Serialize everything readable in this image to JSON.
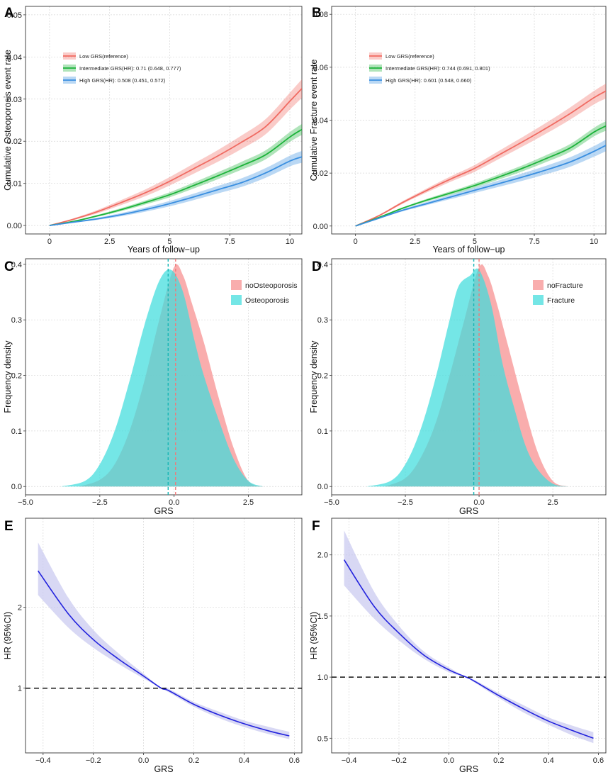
{
  "colors": {
    "low": "#f06b62",
    "intermediate": "#1cb33a",
    "high": "#3a8fe0",
    "noevent": "#f8a4a4",
    "event": "#3fdcdc",
    "hrline": "#2222dd",
    "hrband": "#c7c7f0"
  },
  "chart_data": [
    {
      "panel": "A",
      "type": "line",
      "title": "",
      "xlabel": "Years of follow−up",
      "ylabel": "Cumulative Osteoporosis event rate",
      "xlim": [
        -1,
        10.5
      ],
      "ylim": [
        -0.002,
        0.052
      ],
      "xticks": [
        0,
        2.5,
        5,
        7.5,
        10
      ],
      "xticklabels": [
        "0",
        "2.5",
        "5",
        "7.5",
        "10"
      ],
      "yticks": [
        0,
        0.01,
        0.02,
        0.03,
        0.04,
        0.05
      ],
      "yticklabels": [
        "0.00",
        "0.01",
        "0.02",
        "0.03",
        "0.04",
        "0.05"
      ],
      "legend": [
        "Low GRS(reference)",
        "Intermediate GRS(HR): 0.71 (0.648, 0.777)",
        "High GRS(HR): 0.508 (0.451, 0.572)"
      ],
      "x": [
        0,
        1,
        2,
        3,
        4,
        5,
        6,
        7,
        8,
        9,
        10,
        10.5
      ],
      "series": [
        {
          "name": "Low GRS(reference)",
          "values": [
            0,
            0.0015,
            0.0033,
            0.0055,
            0.0078,
            0.0105,
            0.0135,
            0.0165,
            0.0198,
            0.0235,
            0.0295,
            0.0325
          ],
          "band": 0.0022
        },
        {
          "name": "Intermediate GRS",
          "values": [
            0,
            0.001,
            0.0023,
            0.0038,
            0.0055,
            0.0073,
            0.0095,
            0.0118,
            0.0142,
            0.0168,
            0.021,
            0.0228
          ],
          "band": 0.0013
        },
        {
          "name": "High GRS",
          "values": [
            0,
            0.0008,
            0.0016,
            0.0026,
            0.0038,
            0.0052,
            0.0068,
            0.0085,
            0.0102,
            0.0125,
            0.0153,
            0.0163
          ],
          "band": 0.0014
        }
      ]
    },
    {
      "panel": "B",
      "type": "line",
      "title": "",
      "xlabel": "Years of follow−up",
      "ylabel": "Cumulative Fracture event rate",
      "xlim": [
        -1,
        10.5
      ],
      "ylim": [
        -0.003,
        0.083
      ],
      "xticks": [
        0,
        2.5,
        5,
        7.5,
        10
      ],
      "xticklabels": [
        "0",
        "2.5",
        "5",
        "7.5",
        "10"
      ],
      "yticks": [
        0,
        0.02,
        0.04,
        0.06,
        0.08
      ],
      "yticklabels": [
        "0.00",
        "0.02",
        "0.04",
        "0.06",
        "0.08"
      ],
      "legend": [
        "Low GRS(reference)",
        "Intermediate GRS(HR): 0.744 (0.691, 0.801)",
        "High GRS(HR): 0.601 (0.548, 0.660)"
      ],
      "x": [
        0,
        1,
        2,
        3,
        4,
        5,
        6,
        7,
        8,
        9,
        10,
        10.5
      ],
      "series": [
        {
          "name": "Low GRS(reference)",
          "values": [
            0,
            0.004,
            0.009,
            0.0135,
            0.0178,
            0.0218,
            0.0268,
            0.0318,
            0.037,
            0.0425,
            0.0485,
            0.051
          ],
          "band": 0.0028
        },
        {
          "name": "Intermediate GRS",
          "values": [
            0,
            0.0033,
            0.0068,
            0.0098,
            0.0125,
            0.0153,
            0.0185,
            0.0218,
            0.0255,
            0.0295,
            0.0355,
            0.0378
          ],
          "band": 0.0018
        },
        {
          "name": "High GRS",
          "values": [
            0,
            0.003,
            0.006,
            0.0085,
            0.011,
            0.0135,
            0.016,
            0.0185,
            0.0212,
            0.0242,
            0.0282,
            0.0305
          ],
          "band": 0.0022
        }
      ]
    },
    {
      "panel": "C",
      "type": "area",
      "title": "",
      "xlabel": "GRS",
      "ylabel": "Frequency density",
      "xlim": [
        -5,
        4.3
      ],
      "ylim": [
        -0.015,
        0.41
      ],
      "xticks": [
        -5,
        -2.5,
        0,
        2.5
      ],
      "xticklabels": [
        "−5.0",
        "−2.5",
        "0.0",
        "2.5"
      ],
      "yticks": [
        0,
        0.1,
        0.2,
        0.3,
        0.4
      ],
      "yticklabels": [
        "0.0",
        "0.1",
        "0.2",
        "0.3",
        "0.4"
      ],
      "legend": [
        "noOsteoporosis",
        "Osteoporosis"
      ],
      "series": [
        {
          "name": "noOsteoporosis",
          "x": [
            -3.2,
            -2.5,
            -2.0,
            -1.5,
            -1.0,
            -0.5,
            0.0,
            0.3,
            0.6,
            1.0,
            1.5,
            2.0,
            2.5,
            3.0
          ],
          "values": [
            0.0,
            0.012,
            0.04,
            0.1,
            0.19,
            0.3,
            0.395,
            0.38,
            0.33,
            0.26,
            0.16,
            0.07,
            0.01,
            0.0
          ],
          "mean": 0.05
        },
        {
          "name": "Osteoporosis",
          "x": [
            -3.8,
            -3.0,
            -2.5,
            -2.0,
            -1.5,
            -1.0,
            -0.5,
            -0.1,
            0.3,
            0.7,
            1.0,
            1.5,
            2.0,
            2.5,
            3.0
          ],
          "values": [
            0.0,
            0.01,
            0.04,
            0.1,
            0.19,
            0.29,
            0.37,
            0.39,
            0.35,
            0.26,
            0.2,
            0.12,
            0.05,
            0.01,
            0.0
          ],
          "mean": -0.2
        }
      ]
    },
    {
      "panel": "D",
      "type": "area",
      "title": "",
      "xlabel": "GRS",
      "ylabel": "Frequency density",
      "xlim": [
        -5,
        4.3
      ],
      "ylim": [
        -0.015,
        0.41
      ],
      "xticks": [
        -5,
        -2.5,
        0,
        2.5
      ],
      "xticklabels": [
        "−5.0",
        "−2.5",
        "0.0",
        "2.5"
      ],
      "yticks": [
        0,
        0.1,
        0.2,
        0.3,
        0.4
      ],
      "yticklabels": [
        "0.0",
        "0.1",
        "0.2",
        "0.3",
        "0.4"
      ],
      "legend": [
        "noFracture",
        "Fracture"
      ],
      "series": [
        {
          "name": "noFracture",
          "x": [
            -3.2,
            -2.5,
            -2.0,
            -1.5,
            -1.0,
            -0.5,
            0.0,
            0.3,
            0.6,
            1.0,
            1.5,
            2.0,
            2.5,
            3.0
          ],
          "values": [
            0.0,
            0.015,
            0.05,
            0.11,
            0.2,
            0.3,
            0.395,
            0.38,
            0.33,
            0.25,
            0.15,
            0.06,
            0.01,
            0.0
          ],
          "mean": 0.0
        },
        {
          "name": "Fracture",
          "x": [
            -3.8,
            -3.0,
            -2.5,
            -2.0,
            -1.5,
            -1.0,
            -0.7,
            -0.3,
            0.0,
            0.4,
            0.8,
            1.2,
            1.6,
            2.0,
            2.5,
            3.0
          ],
          "values": [
            0.0,
            0.01,
            0.04,
            0.1,
            0.19,
            0.3,
            0.36,
            0.38,
            0.39,
            0.33,
            0.22,
            0.14,
            0.07,
            0.03,
            0.005,
            0.0
          ],
          "mean": -0.18
        }
      ]
    },
    {
      "panel": "E",
      "type": "line",
      "title": "",
      "xlabel": "GRS",
      "ylabel": "HR (95%CI)",
      "xlim": [
        -0.47,
        0.63
      ],
      "ylim": [
        0.2,
        3.1
      ],
      "xticks": [
        -0.4,
        -0.2,
        0.0,
        0.2,
        0.4,
        0.6
      ],
      "xticklabels": [
        "−0.4",
        "−0.2",
        "0.0",
        "0.2",
        "0.4",
        "0.6"
      ],
      "yticks": [
        1,
        2
      ],
      "yticklabels": [
        "1",
        "2"
      ],
      "reference": 1,
      "x": [
        -0.42,
        -0.3,
        -0.2,
        -0.1,
        0.0,
        0.07,
        0.1,
        0.2,
        0.3,
        0.4,
        0.5,
        0.58
      ],
      "series": [
        {
          "name": "HR",
          "values": [
            2.45,
            1.92,
            1.6,
            1.36,
            1.15,
            1.0,
            0.97,
            0.8,
            0.67,
            0.56,
            0.47,
            0.41
          ],
          "lower": [
            2.15,
            1.75,
            1.5,
            1.3,
            1.12,
            1.0,
            0.95,
            0.77,
            0.63,
            0.52,
            0.43,
            0.37
          ],
          "upper": [
            2.8,
            2.12,
            1.72,
            1.43,
            1.18,
            1.0,
            0.99,
            0.83,
            0.71,
            0.6,
            0.52,
            0.46
          ]
        }
      ]
    },
    {
      "panel": "F",
      "type": "line",
      "title": "",
      "xlabel": "GRS",
      "ylabel": "HR (95%CI)",
      "xlim": [
        -0.47,
        0.63
      ],
      "ylim": [
        0.38,
        2.3
      ],
      "xticks": [
        -0.4,
        -0.2,
        0.0,
        0.2,
        0.4,
        0.6
      ],
      "xticklabels": [
        "−0.4",
        "−0.2",
        "0.0",
        "0.2",
        "0.4",
        "0.6"
      ],
      "yticks": [
        0.5,
        1.0,
        1.5,
        2.0
      ],
      "yticklabels": [
        "0.5",
        "1.0",
        "1.5",
        "2.0"
      ],
      "reference": 1,
      "x": [
        -0.42,
        -0.3,
        -0.2,
        -0.1,
        0.0,
        0.07,
        0.1,
        0.2,
        0.3,
        0.4,
        0.5,
        0.58
      ],
      "series": [
        {
          "name": "HR",
          "values": [
            1.96,
            1.58,
            1.36,
            1.18,
            1.06,
            1.0,
            0.97,
            0.85,
            0.74,
            0.64,
            0.56,
            0.5
          ],
          "lower": [
            1.75,
            1.48,
            1.3,
            1.15,
            1.04,
            1.0,
            0.96,
            0.83,
            0.71,
            0.61,
            0.52,
            0.46
          ],
          "upper": [
            2.2,
            1.7,
            1.42,
            1.21,
            1.08,
            1.0,
            0.98,
            0.87,
            0.77,
            0.67,
            0.6,
            0.55
          ]
        }
      ]
    }
  ]
}
